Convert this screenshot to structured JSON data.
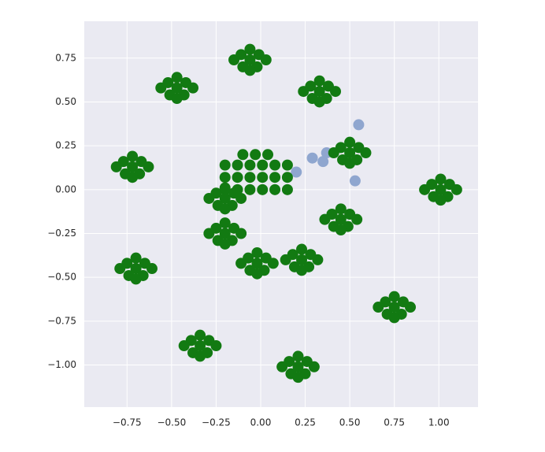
{
  "chart_data": {
    "type": "scatter",
    "xlim": [
      -0.99,
      1.22
    ],
    "ylim": [
      -1.24,
      0.96
    ],
    "xticks": [
      {
        "value": -0.75,
        "label": "−0.75"
      },
      {
        "value": -0.5,
        "label": "−0.50"
      },
      {
        "value": -0.25,
        "label": "−0.25"
      },
      {
        "value": 0,
        "label": "0.00"
      },
      {
        "value": 0.25,
        "label": "0.25"
      },
      {
        "value": 0.5,
        "label": "0.50"
      },
      {
        "value": 0.75,
        "label": "0.75"
      },
      {
        "value": 1,
        "label": "1.00"
      }
    ],
    "yticks": [
      {
        "value": -1,
        "label": "−1.00"
      },
      {
        "value": -0.75,
        "label": "−0.75"
      },
      {
        "value": -0.5,
        "label": "−0.50"
      },
      {
        "value": -0.25,
        "label": "−0.25"
      },
      {
        "value": 0,
        "label": "0.00"
      },
      {
        "value": 0.25,
        "label": "0.25"
      },
      {
        "value": 0.5,
        "label": "0.50"
      },
      {
        "value": 0.75,
        "label": "0.75"
      }
    ],
    "grid": true,
    "series": [
      {
        "color": "#8fa6cf",
        "x": [
          0.55,
          0.37,
          0.29,
          0.2,
          0.53,
          0.35
        ],
        "y": [
          0.37,
          0.21,
          0.18,
          0.1,
          0.05,
          0.16
        ]
      },
      {
        "color": "#127a12",
        "x": [
          -0.72,
          -0.67,
          -0.77,
          -0.68,
          -0.76,
          -0.63,
          -0.81,
          -0.72,
          -0.72,
          -0.47,
          -0.42,
          -0.52,
          -0.43,
          -0.51,
          -0.38,
          -0.56,
          -0.47,
          -0.47,
          -0.06,
          -0.01,
          -0.11,
          -0.02,
          -0.1,
          0.03,
          -0.15,
          -0.06,
          -0.06,
          0.33,
          0.38,
          0.28,
          0.37,
          0.29,
          0.42,
          0.24,
          0.33,
          0.33,
          0.5,
          0.55,
          0.45,
          0.54,
          0.46,
          0.59,
          0.41,
          0.5,
          0.5,
          1.01,
          1.06,
          0.96,
          1.05,
          0.97,
          1.1,
          0.92,
          1.01,
          1.01,
          0.45,
          0.5,
          0.4,
          0.49,
          0.41,
          0.54,
          0.36,
          0.45,
          0.45,
          0.23,
          0.28,
          0.18,
          0.27,
          0.19,
          0.32,
          0.14,
          0.23,
          0.23,
          -0.7,
          -0.65,
          -0.75,
          -0.66,
          -0.74,
          -0.61,
          -0.79,
          -0.7,
          -0.7,
          0.75,
          0.8,
          0.7,
          0.79,
          0.71,
          0.84,
          0.66,
          0.75,
          0.75,
          -0.34,
          -0.29,
          -0.39,
          -0.3,
          -0.38,
          -0.25,
          -0.43,
          -0.34,
          -0.34,
          0.21,
          0.26,
          0.16,
          0.25,
          0.17,
          0.3,
          0.12,
          0.21,
          0.21,
          -0.2,
          -0.13,
          -0.06,
          0.01,
          0.08,
          0.15,
          -0.2,
          -0.13,
          -0.06,
          0.01,
          0.08,
          0.15,
          -0.2,
          -0.13,
          -0.06,
          0.01,
          0.08,
          0.15,
          -0.1,
          -0.03,
          0.04,
          -0.2,
          -0.15,
          -0.25,
          -0.16,
          -0.24,
          -0.11,
          -0.29,
          -0.2,
          -0.2,
          -0.2,
          -0.15,
          -0.25,
          -0.16,
          -0.24,
          -0.11,
          -0.29,
          -0.2,
          -0.2,
          -0.02,
          0.03,
          -0.07,
          0.02,
          -0.06,
          0.07,
          -0.11,
          -0.02,
          -0.02
        ],
        "y": [
          0.13,
          0.16,
          0.16,
          0.09,
          0.09,
          0.13,
          0.13,
          0.19,
          0.07,
          0.58,
          0.61,
          0.61,
          0.54,
          0.54,
          0.58,
          0.58,
          0.64,
          0.52,
          0.74,
          0.77,
          0.77,
          0.7,
          0.7,
          0.74,
          0.74,
          0.8,
          0.68,
          0.56,
          0.59,
          0.59,
          0.52,
          0.52,
          0.56,
          0.56,
          0.62,
          0.5,
          0.21,
          0.24,
          0.24,
          0.17,
          0.17,
          0.21,
          0.21,
          0.27,
          0.15,
          0.0,
          0.03,
          0.03,
          -0.04,
          -0.04,
          0.0,
          0.0,
          0.06,
          -0.06,
          -0.17,
          -0.14,
          -0.14,
          -0.21,
          -0.21,
          -0.17,
          -0.17,
          -0.11,
          -0.23,
          -0.4,
          -0.37,
          -0.37,
          -0.44,
          -0.44,
          -0.4,
          -0.4,
          -0.34,
          -0.46,
          -0.45,
          -0.42,
          -0.42,
          -0.49,
          -0.49,
          -0.45,
          -0.45,
          -0.39,
          -0.51,
          -0.67,
          -0.64,
          -0.64,
          -0.71,
          -0.71,
          -0.67,
          -0.67,
          -0.61,
          -0.73,
          -0.89,
          -0.86,
          -0.86,
          -0.93,
          -0.93,
          -0.89,
          -0.89,
          -0.83,
          -0.95,
          -1.01,
          -0.98,
          -0.98,
          -1.05,
          -1.05,
          -1.01,
          -1.01,
          -0.95,
          -1.07,
          0.0,
          0.0,
          0.0,
          0.0,
          0.0,
          0.0,
          0.07,
          0.07,
          0.07,
          0.07,
          0.07,
          0.07,
          0.14,
          0.14,
          0.14,
          0.14,
          0.14,
          0.14,
          0.2,
          0.2,
          0.2,
          -0.05,
          -0.02,
          -0.02,
          -0.09,
          -0.09,
          -0.05,
          -0.05,
          0.01,
          -0.11,
          -0.25,
          -0.22,
          -0.22,
          -0.29,
          -0.29,
          -0.25,
          -0.25,
          -0.19,
          -0.31,
          -0.42,
          -0.39,
          -0.39,
          -0.46,
          -0.46,
          -0.42,
          -0.42,
          -0.36,
          -0.48
        ]
      }
    ]
  }
}
